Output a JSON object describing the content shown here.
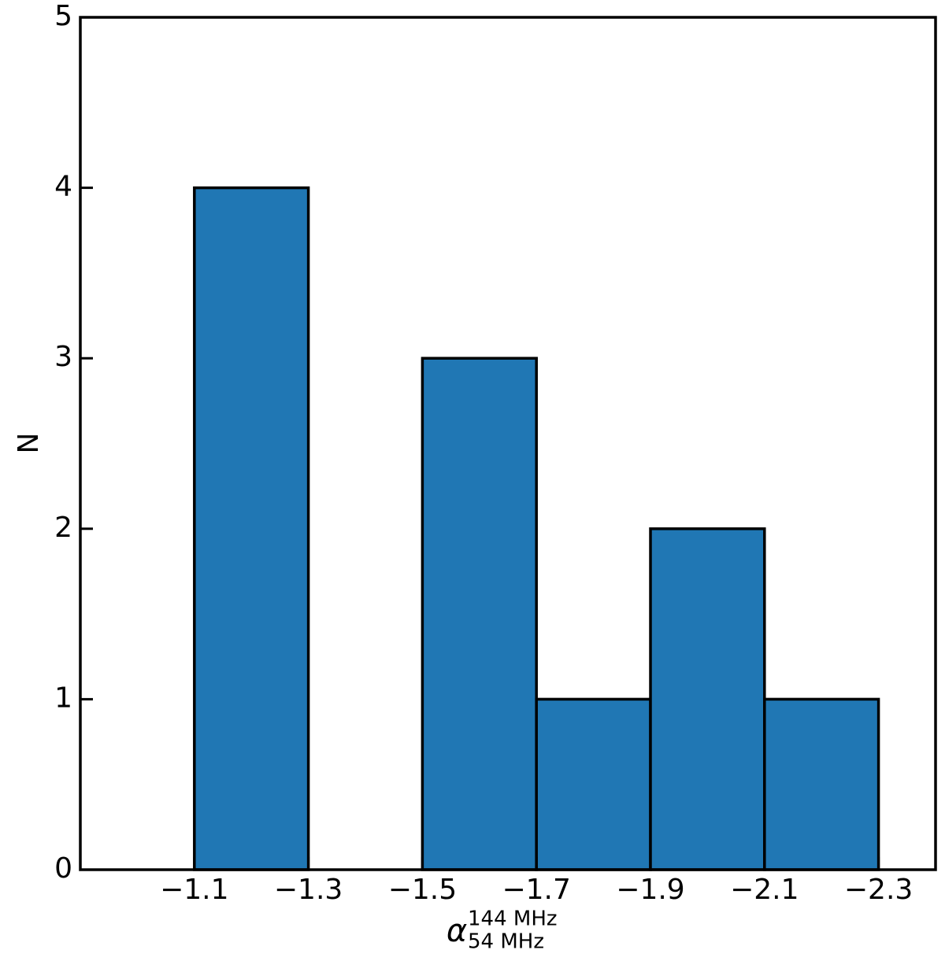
{
  "chart_data": {
    "type": "histogram",
    "bins": [
      -1.1,
      -1.3,
      -1.5,
      -1.7,
      -1.9,
      -2.1,
      -2.3
    ],
    "values": [
      4,
      0,
      3,
      1,
      2,
      1
    ],
    "color": "#2077b4",
    "edgecolor": "#000000",
    "xlabel": {
      "symbol": "α",
      "sup": "144 MHz",
      "sub": "54 MHz"
    },
    "ylabel": "N",
    "xlim": [
      -0.9,
      -2.4
    ],
    "xticks": [
      {
        "value": -1.1,
        "label": "−1.1"
      },
      {
        "value": -1.3,
        "label": "−1.3"
      },
      {
        "value": -1.5,
        "label": "−1.5"
      },
      {
        "value": -1.7,
        "label": "−1.7"
      },
      {
        "value": -1.9,
        "label": "−1.9"
      },
      {
        "value": -2.1,
        "label": "−2.1"
      },
      {
        "value": -2.3,
        "label": "−2.3"
      }
    ],
    "ylim": [
      0,
      5
    ],
    "yticks": [
      0,
      1,
      2,
      3,
      4,
      5
    ],
    "grid": false
  }
}
